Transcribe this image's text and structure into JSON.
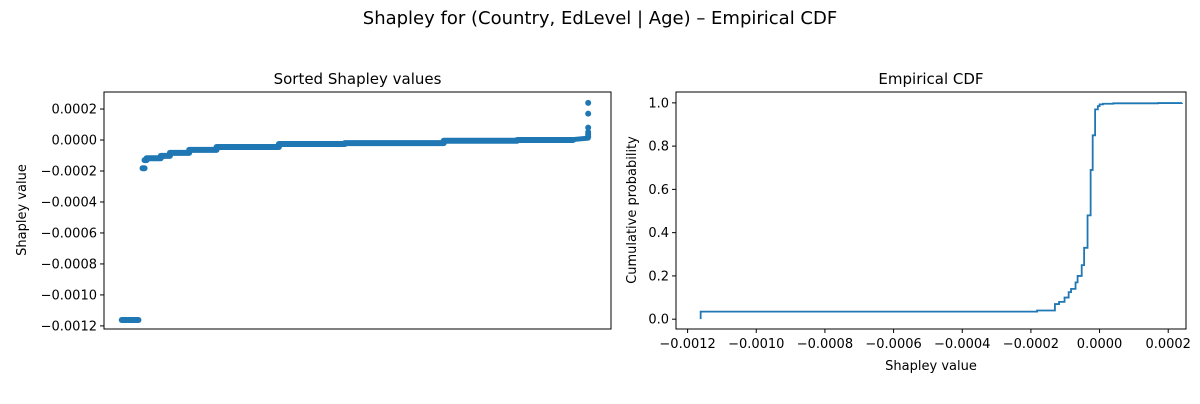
{
  "figure": {
    "suptitle": "Shapley for (Country, EdLevel | Age) – Empirical CDF"
  },
  "chart_data": [
    {
      "type": "scatter",
      "title": "Sorted Shapley values",
      "xlabel": "",
      "ylabel": "Shapley value",
      "show_xticks": false,
      "grid": false,
      "ylim": [
        -0.00122,
        0.00031
      ],
      "yticks": [
        0.0002,
        0.0,
        -0.0002,
        -0.0004,
        -0.0006,
        -0.0008,
        -0.001,
        -0.0012
      ],
      "ytick_labels": [
        "0.0002",
        "0.0000",
        "−0.0002",
        "−0.0004",
        "−0.0006",
        "−0.0008",
        "−0.0010",
        "−0.0012"
      ],
      "color": "#1f77b4",
      "xlim": [
        0,
        1
      ],
      "segments": [
        {
          "x_start": 0.035,
          "x_end": 0.068,
          "y_start": -0.001162,
          "y_end": -0.001162
        },
        {
          "x_start": 0.076,
          "x_end": 0.08,
          "y_start": -0.000182,
          "y_end": -0.000182
        },
        {
          "x_start": 0.08,
          "x_end": 0.084,
          "y_start": -0.00013,
          "y_end": -0.00013
        },
        {
          "x_start": 0.084,
          "x_end": 0.112,
          "y_start": -0.000118,
          "y_end": -0.000118
        },
        {
          "x_start": 0.112,
          "x_end": 0.13,
          "y_start": -0.000102,
          "y_end": -0.000102
        },
        {
          "x_start": 0.13,
          "x_end": 0.168,
          "y_start": -8.3e-05,
          "y_end": -8.3e-05
        },
        {
          "x_start": 0.168,
          "x_end": 0.222,
          "y_start": -6.4e-05,
          "y_end": -6.4e-05
        },
        {
          "x_start": 0.222,
          "x_end": 0.345,
          "y_start": -4.5e-05,
          "y_end": -4.5e-05
        },
        {
          "x_start": 0.345,
          "x_end": 0.475,
          "y_start": -2.6e-05,
          "y_end": -2.6e-05
        },
        {
          "x_start": 0.475,
          "x_end": 0.67,
          "y_start": -2e-05,
          "y_end": -2e-05
        },
        {
          "x_start": 0.67,
          "x_end": 0.815,
          "y_start": -5e-06,
          "y_end": -5e-06
        },
        {
          "x_start": 0.815,
          "x_end": 0.925,
          "y_start": 0.0,
          "y_end": 0.0
        },
        {
          "x_start": 0.925,
          "x_end": 0.955,
          "y_start": 3e-06,
          "y_end": 1.2e-05
        }
      ],
      "points": [
        {
          "x": 0.955,
          "y": 2e-05
        },
        {
          "x": 0.955,
          "y": 3.5e-05
        },
        {
          "x": 0.955,
          "y": 5e-05
        },
        {
          "x": 0.955,
          "y": 8e-05
        },
        {
          "x": 0.955,
          "y": 0.00017
        },
        {
          "x": 0.955,
          "y": 0.00024
        }
      ]
    },
    {
      "type": "line",
      "drawstyle": "steps-post",
      "title": "Empirical CDF",
      "xlabel": "Shapley value",
      "ylabel": "Cumulative probability",
      "grid": false,
      "xlim": [
        -0.0012338,
        0.0002518
      ],
      "ylim": [
        -0.0454,
        1.0502
      ],
      "xticks": [
        -0.0012,
        -0.001,
        -0.0008,
        -0.0006,
        -0.0004,
        -0.0002,
        0.0,
        0.0002
      ],
      "xtick_labels": [
        "−0.0012",
        "−0.0010",
        "−0.0008",
        "−0.0006",
        "−0.0004",
        "−0.0002",
        "0.0000",
        "0.0002"
      ],
      "yticks": [
        0.0,
        0.2,
        0.4,
        0.6,
        0.8,
        1.0
      ],
      "ytick_labels": [
        "0.0",
        "0.2",
        "0.4",
        "0.6",
        "0.8",
        "1.0"
      ],
      "color": "#1f77b4",
      "x": [
        -0.001162,
        -0.001162,
        -0.000182,
        -0.00013,
        -0.000118,
        -0.000102,
        -9e-05,
        -8.3e-05,
        -7e-05,
        -6.4e-05,
        -5.2e-05,
        -4.5e-05,
        -3.5e-05,
        -2.6e-05,
        -2e-05,
        -1.3e-05,
        -5e-06,
        0.0,
        1e-05,
        4e-05,
        0.00017,
        0.00024
      ],
      "y": [
        0.0,
        0.035,
        0.04,
        0.07,
        0.08,
        0.1,
        0.125,
        0.14,
        0.17,
        0.2,
        0.25,
        0.33,
        0.48,
        0.69,
        0.85,
        0.97,
        0.985,
        0.993,
        0.996,
        0.998,
        0.999,
        1.0
      ]
    }
  ]
}
